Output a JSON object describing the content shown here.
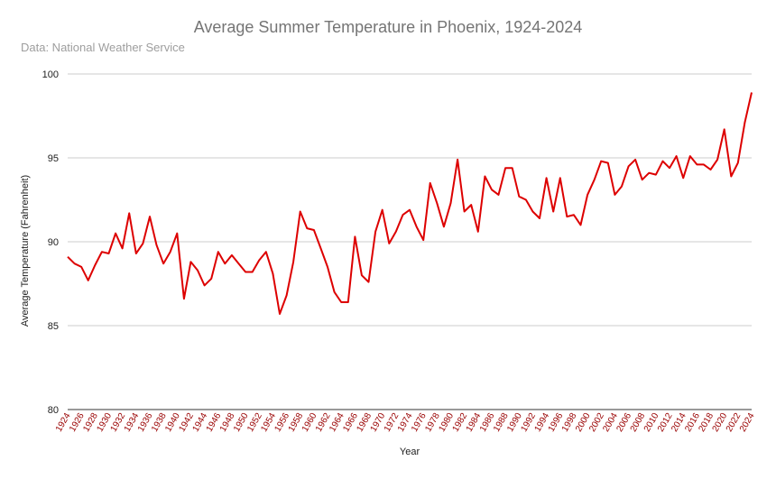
{
  "chart_data": {
    "type": "line",
    "title": "Average Summer Temperature in Phoenix, 1924-2024",
    "subtitle": "Data: National Weather Service",
    "xlabel": "Year",
    "ylabel": "Average Temperature (Fahrenheit)",
    "ylim": [
      80,
      100
    ],
    "yticks": [
      80,
      85,
      90,
      95,
      100
    ],
    "grid": true,
    "legend": "none",
    "line_color": "#dd0000",
    "x": [
      1924,
      1925,
      1926,
      1927,
      1928,
      1929,
      1930,
      1931,
      1932,
      1933,
      1934,
      1935,
      1936,
      1937,
      1938,
      1939,
      1940,
      1941,
      1942,
      1943,
      1944,
      1945,
      1946,
      1947,
      1948,
      1949,
      1950,
      1951,
      1952,
      1953,
      1954,
      1955,
      1956,
      1957,
      1958,
      1959,
      1960,
      1961,
      1962,
      1963,
      1964,
      1965,
      1966,
      1967,
      1968,
      1969,
      1970,
      1971,
      1972,
      1973,
      1974,
      1975,
      1976,
      1977,
      1978,
      1979,
      1980,
      1981,
      1982,
      1983,
      1984,
      1985,
      1986,
      1987,
      1988,
      1989,
      1990,
      1991,
      1992,
      1993,
      1994,
      1995,
      1996,
      1997,
      1998,
      1999,
      2000,
      2001,
      2002,
      2003,
      2004,
      2005,
      2006,
      2007,
      2008,
      2009,
      2010,
      2011,
      2012,
      2013,
      2014,
      2015,
      2016,
      2017,
      2018,
      2019,
      2020,
      2021,
      2022,
      2023,
      2024
    ],
    "values": [
      89.1,
      88.7,
      88.5,
      87.7,
      88.6,
      89.4,
      89.3,
      90.5,
      89.6,
      91.7,
      89.3,
      89.9,
      91.5,
      89.8,
      88.7,
      89.4,
      90.5,
      86.6,
      88.8,
      88.3,
      87.4,
      87.8,
      89.4,
      88.7,
      89.2,
      88.7,
      88.2,
      88.2,
      88.9,
      89.4,
      88.1,
      85.7,
      86.8,
      88.8,
      91.8,
      90.8,
      90.7,
      89.6,
      88.5,
      87.0,
      86.4,
      86.4,
      90.3,
      88.0,
      87.6,
      90.6,
      91.9,
      89.9,
      90.6,
      91.6,
      91.9,
      90.9,
      90.1,
      93.5,
      92.3,
      90.9,
      92.3,
      94.9,
      91.8,
      92.2,
      90.6,
      93.9,
      93.1,
      92.8,
      94.4,
      94.4,
      92.7,
      92.5,
      91.8,
      91.4,
      93.8,
      91.8,
      93.8,
      91.5,
      91.6,
      91.0,
      92.8,
      93.7,
      94.8,
      94.7,
      92.8,
      93.3,
      94.5,
      94.9,
      93.7,
      94.1,
      94.0,
      94.8,
      94.4,
      95.1,
      93.8,
      95.1,
      94.6,
      94.6,
      94.3,
      94.9,
      96.7,
      93.9,
      94.7,
      97.1,
      98.9
    ]
  }
}
